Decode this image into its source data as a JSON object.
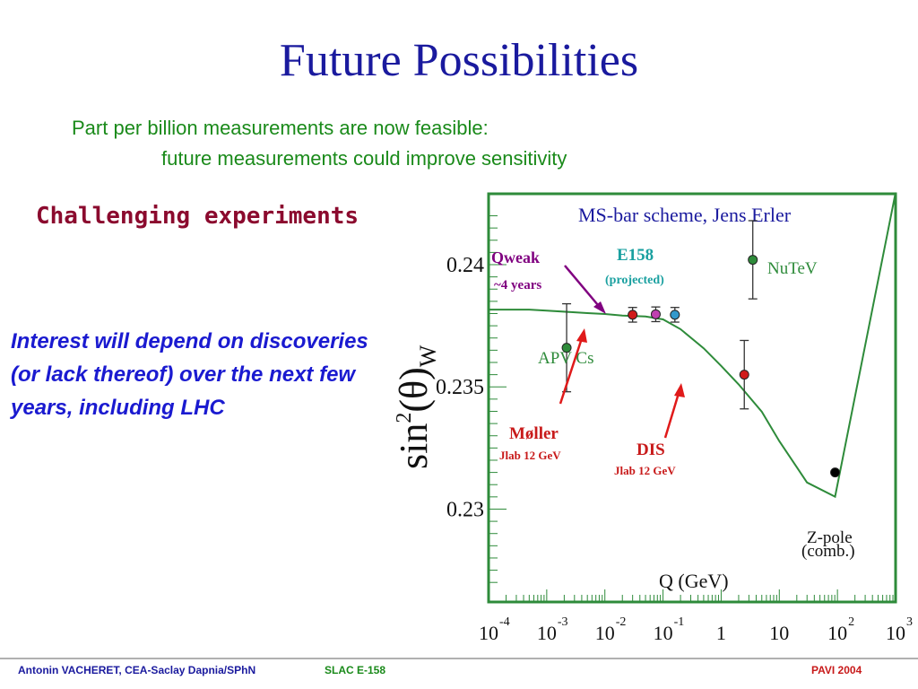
{
  "slide": {
    "title": "Future Possibilities",
    "subtitle_line1": "Part per billion measurements are now feasible:",
    "subtitle_line2": "future measurements could improve sensitivity",
    "challenging": "Challenging experiments",
    "interest": "Interest will depend on discoveries (or lack thereof) over the next few years, including LHC"
  },
  "footer": {
    "author": "Antonin VACHERET,  CEA-Saclay  Dapnia/SPhN",
    "experiment": "SLAC E-158",
    "conference": "PAVI 2004"
  },
  "colors": {
    "title": "#1a1a9e",
    "green": "#2e8b3a",
    "frame": "#2e8b3a",
    "red": "#c81a1a",
    "purple": "#800080",
    "teal": "#1aa0a0"
  },
  "chart_data": {
    "type": "scatter",
    "title": "MS-bar scheme, Jens Erler",
    "xlabel": "Q (GeV)",
    "ylabel": "sin²(θ)W",
    "x_scale": "log",
    "xlim_log10": [
      -4,
      3
    ],
    "ylim": [
      0.2262,
      0.2429
    ],
    "x_tick_labels": [
      {
        "text": "10",
        "exp": "-4",
        "log10": -4
      },
      {
        "text": "10",
        "exp": "-3",
        "log10": -3
      },
      {
        "text": "10",
        "exp": "-2",
        "log10": -2
      },
      {
        "text": "10",
        "exp": "-1",
        "log10": -1
      },
      {
        "text": "1",
        "exp": "",
        "log10": 0
      },
      {
        "text": "10",
        "exp": "",
        "log10": 1
      },
      {
        "text": "10",
        "exp": "2",
        "log10": 2
      },
      {
        "text": "10",
        "exp": "3",
        "log10": 3
      }
    ],
    "y_tick_labels": [
      {
        "text": "0.24",
        "value": 0.24
      },
      {
        "text": "0.235",
        "value": 0.235
      },
      {
        "text": "0.23",
        "value": 0.23
      }
    ],
    "running_curve": [
      {
        "q": 0.0001,
        "y": 0.23816
      },
      {
        "q": 0.0005,
        "y": 0.23816
      },
      {
        "q": 0.001,
        "y": 0.23812
      },
      {
        "q": 0.005,
        "y": 0.23802
      },
      {
        "q": 0.01,
        "y": 0.23798
      },
      {
        "q": 0.02,
        "y": 0.23792
      },
      {
        "q": 0.05,
        "y": 0.23788
      },
      {
        "q": 0.1,
        "y": 0.23776
      },
      {
        "q": 0.2,
        "y": 0.23736
      },
      {
        "q": 0.5,
        "y": 0.23658
      },
      {
        "q": 1,
        "y": 0.23586
      },
      {
        "q": 2,
        "y": 0.2351
      },
      {
        "q": 5,
        "y": 0.23398
      },
      {
        "q": 10,
        "y": 0.23278
      },
      {
        "q": 30,
        "y": 0.23109
      },
      {
        "q": 91.2,
        "y": 0.23051
      },
      {
        "q": 1000,
        "y": 0.24295
      }
    ],
    "points": [
      {
        "name": "APV Cs",
        "q": 0.0022,
        "y": 0.2366,
        "err": 0.0018,
        "color": "#2e8b3a"
      },
      {
        "name": "E158 (projected)",
        "q": 0.16,
        "y": 0.23795,
        "err": 0.0003,
        "color": "#3399cc"
      },
      {
        "name": "Qweak",
        "q": 0.03,
        "y": 0.23795,
        "err": 0.0003,
        "color": "#d01a1a"
      },
      {
        "name": "Møller",
        "q": 0.075,
        "y": 0.23797,
        "err": 0.0003,
        "color": "#c040b0"
      },
      {
        "name": "DIS",
        "q": 2.5,
        "y": 0.2355,
        "err": 0.0014,
        "color": "#d01a1a"
      },
      {
        "name": "NuTeV",
        "q": 3.5,
        "y": 0.2402,
        "err": 0.0016,
        "color": "#2e8b3a"
      },
      {
        "name": "Z-pole (comb.)",
        "q": 91.2,
        "y": 0.2315,
        "err": 0.0,
        "color": "#000000"
      }
    ],
    "annotations": {
      "qweak": "Qweak",
      "qweak_time": "~4 years",
      "e158": "E158",
      "e158_note": "(projected)",
      "nutev": "NuTeV",
      "apv": "APV Cs",
      "moller": "Møller",
      "moller_note": "Jlab 12 GeV",
      "dis": "DIS",
      "dis_note": "Jlab 12 GeV",
      "zpole1": "Z-pole",
      "zpole2": "(comb.)"
    }
  }
}
